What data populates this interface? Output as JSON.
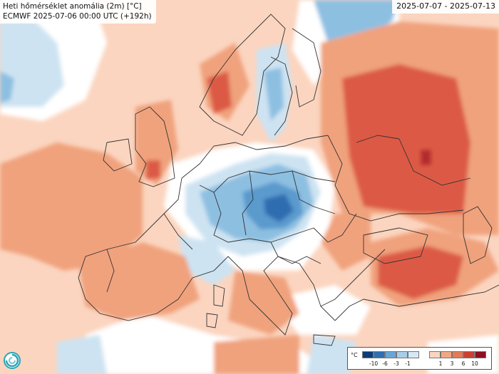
{
  "title": {
    "line1": "Heti hőmérséklet anomália (2m) [°C]",
    "line2": "ECMWF 2025-07-06 00:00 UTC (+192h)"
  },
  "period": "2025-07-07 - 2025-07-13",
  "legend": {
    "unit": "°C",
    "negative_ticks": [
      "-10",
      "-6",
      "-3",
      "-1"
    ],
    "positive_ticks": [
      "1",
      "3",
      "6",
      "10"
    ],
    "negative_colors": [
      "#0b3c7a",
      "#2e6fb0",
      "#6aa6d4",
      "#a9cde8",
      "#d6e8f4"
    ],
    "positive_colors": [
      "#fbd5c0",
      "#f3a684",
      "#e57a57",
      "#cc4034",
      "#8e0f22"
    ]
  },
  "colors": {
    "neutral": "#ffffff",
    "warm_light": "#fbd5c0",
    "warm_mid": "#f0a27d",
    "warm_strong": "#dc5a45",
    "warm_extreme": "#b52a2f",
    "cool_light": "#cde3f2",
    "cool_mid": "#8dbfe1",
    "cool_strong": "#5a9acd",
    "cool_extreme": "#2f6db0",
    "borders": "#333333"
  },
  "icons": {
    "logo": "swirl-logo-icon"
  }
}
